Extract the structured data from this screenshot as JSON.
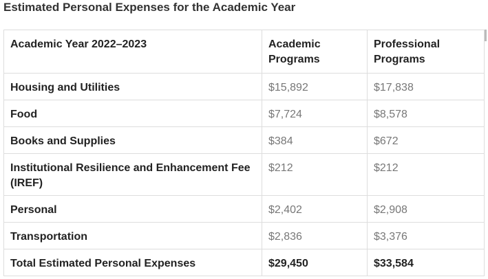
{
  "title": "Estimated Personal Expenses for the Academic Year",
  "table": {
    "header": [
      "Academic Year 2022–2023",
      "Academic Programs",
      "Professional Programs"
    ],
    "rows": [
      [
        "Housing and Utilities",
        "$15,892",
        "$17,838"
      ],
      [
        "Food",
        "$7,724",
        "$8,578"
      ],
      [
        "Books and Supplies",
        "$384",
        "$672"
      ],
      [
        "Institutional Resilience and Enhancement Fee (IREF)",
        "$212",
        "$212"
      ],
      [
        "Personal",
        "$2,402",
        "$2,908"
      ],
      [
        "Transportation",
        "$2,836",
        "$3,376"
      ],
      [
        "Total Estimated Personal Expenses",
        "$29,450",
        "$33,584"
      ]
    ]
  }
}
